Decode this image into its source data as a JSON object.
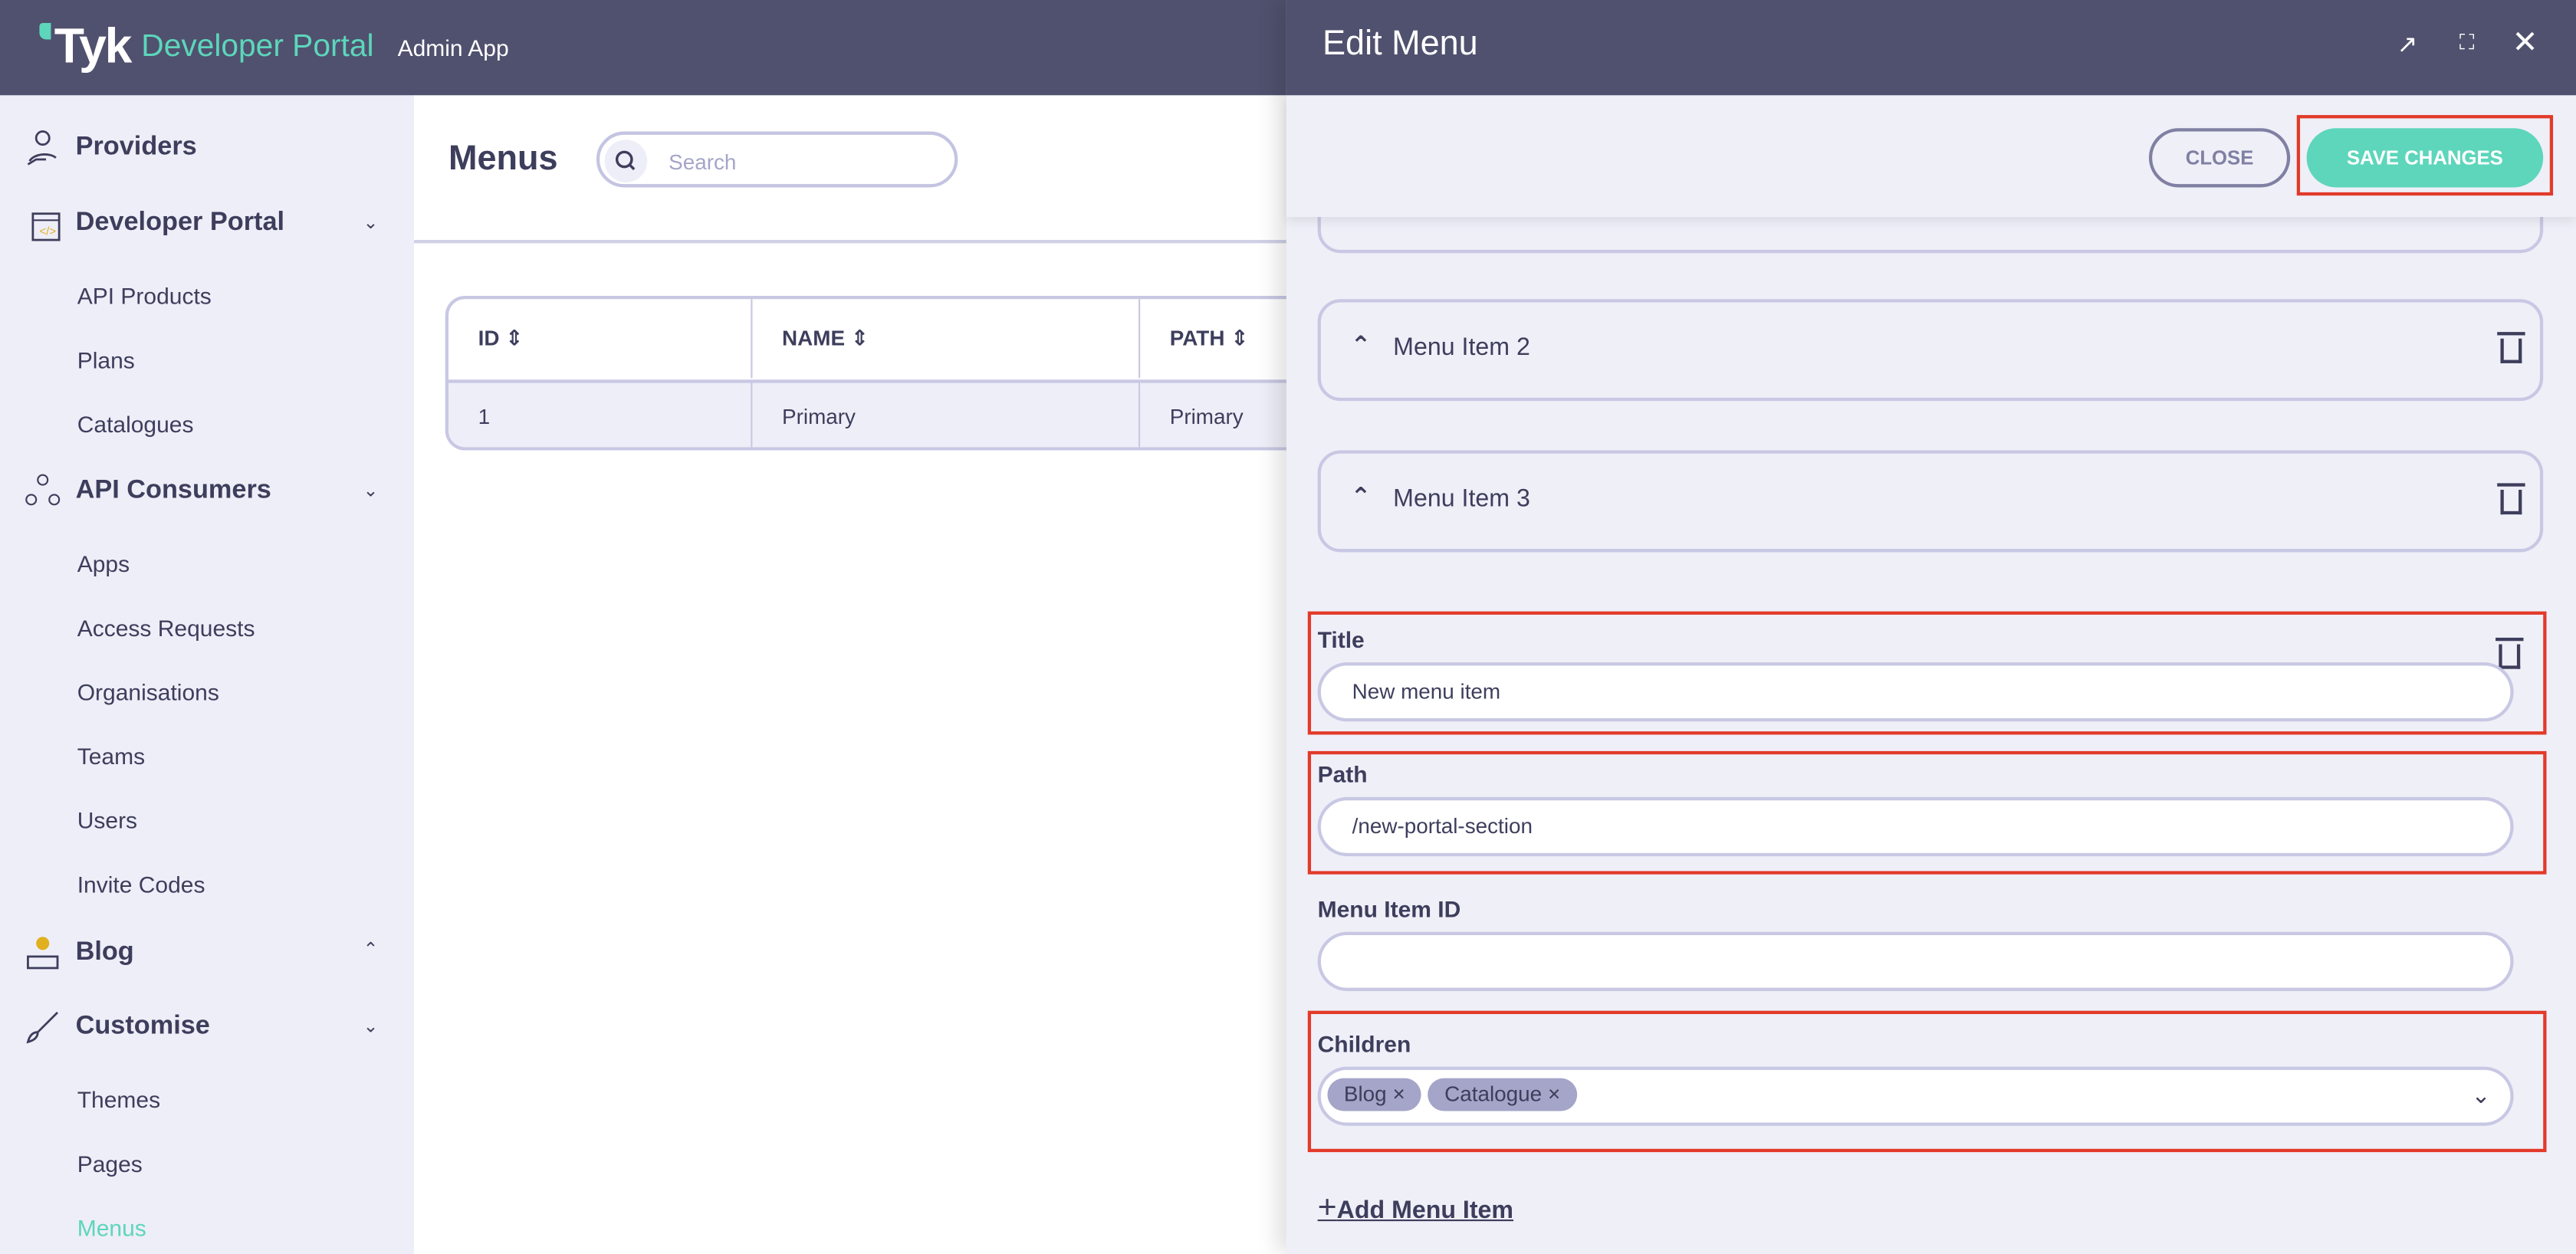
{
  "topbar": {
    "logo": "Tyk",
    "product": "Developer Portal",
    "app": "Admin App"
  },
  "sidebar": {
    "sections": [
      {
        "label": "Providers",
        "icon": "providers-icon"
      },
      {
        "label": "Developer Portal",
        "icon": "developer-portal-icon",
        "items": [
          "API Products",
          "Plans",
          "Catalogues"
        ]
      },
      {
        "label": "API Consumers",
        "icon": "api-consumers-icon",
        "items": [
          "Apps",
          "Access Requests",
          "Organisations",
          "Teams",
          "Users",
          "Invite Codes"
        ]
      },
      {
        "label": "Blog",
        "icon": "blog-icon"
      },
      {
        "label": "Customise",
        "icon": "customise-icon",
        "items": [
          "Themes",
          "Pages",
          "Menus"
        ]
      }
    ],
    "active": "Menus"
  },
  "main": {
    "title": "Menus",
    "search_placeholder": "Search",
    "table": {
      "columns": [
        "ID",
        "NAME",
        "PATH"
      ],
      "rows": [
        [
          "1",
          "Primary",
          "Primary"
        ]
      ]
    }
  },
  "drawer": {
    "title": "Edit Menu",
    "close_label": "CLOSE",
    "save_label": "SAVE CHANGES",
    "menu_items": [
      "Menu Item 2",
      "Menu Item 3"
    ],
    "form": {
      "title_label": "Title",
      "title_value": "New menu item",
      "path_label": "Path",
      "path_value": "/new-portal-section",
      "id_label": "Menu Item ID",
      "id_value": "",
      "children_label": "Children",
      "children": [
        "Blog",
        "Catalogue"
      ]
    },
    "add_label": "Add Menu Item"
  },
  "colors": {
    "header": "#50516e",
    "accent": "#5dd6bb",
    "sidebar": "#eeeef8",
    "highlight": "#e23a2a"
  }
}
